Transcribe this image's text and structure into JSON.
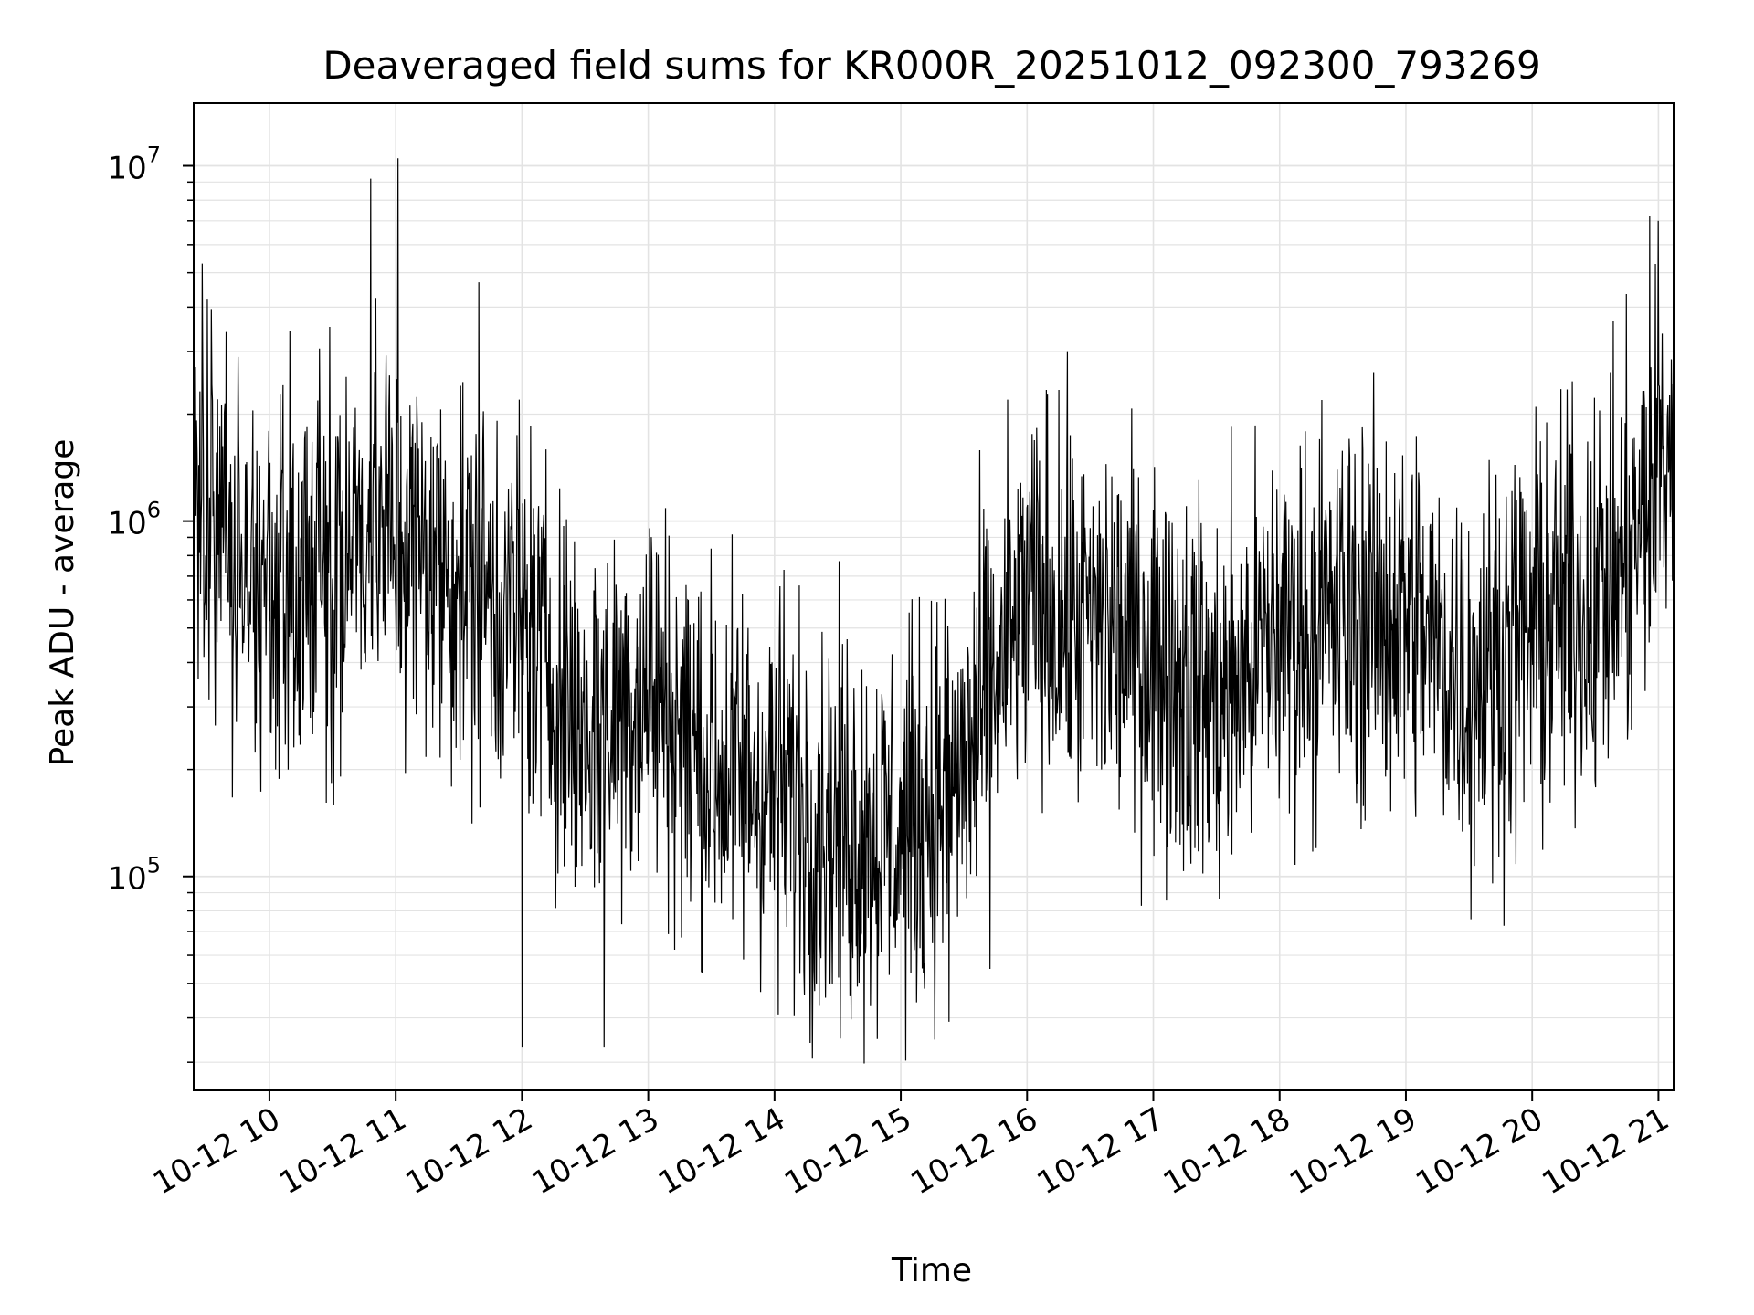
{
  "chart_data": {
    "type": "line",
    "title": "Deaveraged field sums for KR000R_20251012_092300_793269",
    "xlabel": "Time",
    "ylabel": "Peak ADU - average",
    "yscale": "log",
    "ylim": [
      25000,
      15000000
    ],
    "xlim_hours": [
      9.4,
      21.12
    ],
    "grid": true,
    "line_color": "#000000",
    "x_ticks": [
      {
        "hour": 10,
        "label": "10-12 10"
      },
      {
        "hour": 11,
        "label": "10-12 11"
      },
      {
        "hour": 12,
        "label": "10-12 12"
      },
      {
        "hour": 13,
        "label": "10-12 13"
      },
      {
        "hour": 14,
        "label": "10-12 14"
      },
      {
        "hour": 15,
        "label": "10-12 15"
      },
      {
        "hour": 16,
        "label": "10-12 16"
      },
      {
        "hour": 17,
        "label": "10-12 17"
      },
      {
        "hour": 18,
        "label": "10-12 18"
      },
      {
        "hour": 19,
        "label": "10-12 19"
      },
      {
        "hour": 20,
        "label": "10-12 20"
      },
      {
        "hour": 21,
        "label": "10-12 21"
      }
    ],
    "y_ticks": [
      {
        "value": 100000,
        "base": "10",
        "exp": "5"
      },
      {
        "value": 1000000,
        "base": "10",
        "exp": "6"
      },
      {
        "value": 10000000,
        "base": "10",
        "exp": "7"
      }
    ],
    "series": [
      {
        "name": "Deaveraged field sum",
        "note": "Dense noisy series; envelope given as baseline level (median) at hourly knots, sampled with scatter",
        "envelope_hours": [
          9.4,
          9.6,
          10.0,
          10.5,
          10.8,
          11.0,
          11.5,
          12.0,
          12.5,
          13.0,
          13.5,
          14.0,
          14.5,
          15.0,
          15.5,
          16.0,
          16.5,
          17.0,
          17.5,
          18.0,
          18.5,
          19.0,
          19.5,
          20.0,
          20.5,
          20.8,
          21.12
        ],
        "envelope_median": [
          1500000,
          800000,
          600000,
          800000,
          1000000,
          900000,
          700000,
          550000,
          250000,
          350000,
          200000,
          180000,
          140000,
          130000,
          200000,
          600000,
          500000,
          450000,
          300000,
          500000,
          550000,
          550000,
          350000,
          500000,
          600000,
          800000,
          1800000
        ],
        "spikes": [
          {
            "hour": 10.8,
            "value": 9200000
          },
          {
            "hour": 11.02,
            "value": 10500000
          },
          {
            "hour": 11.66,
            "value": 4700000
          },
          {
            "hour": 20.93,
            "value": 7200000
          },
          {
            "hour": 21.0,
            "value": 7000000
          },
          {
            "hour": 12.0,
            "value": 33000
          },
          {
            "hour": 12.65,
            "value": 33000
          },
          {
            "hour": 14.28,
            "value": 34000
          },
          {
            "hour": 15.38,
            "value": 39000
          }
        ]
      }
    ]
  }
}
